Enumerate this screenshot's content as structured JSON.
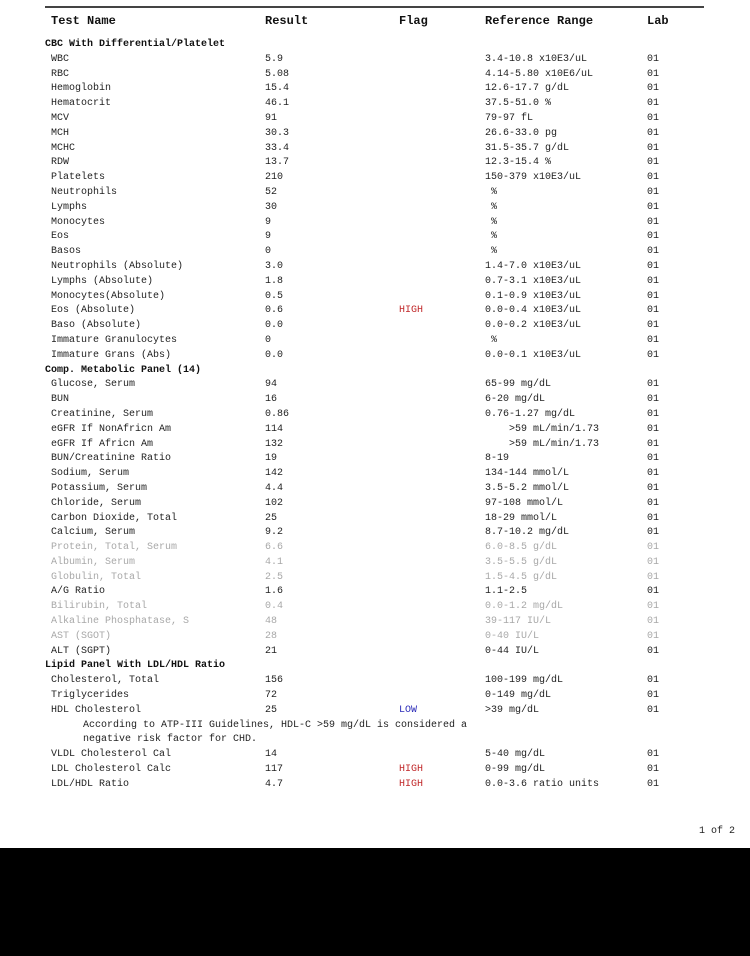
{
  "headers": {
    "test_name": "Test Name",
    "result": "Result",
    "flag": "Flag",
    "reference_range": "Reference Range",
    "lab": "Lab"
  },
  "colors": {
    "high": "#c0282a",
    "low": "#2a2ab8"
  },
  "rows": [
    {
      "type": "section",
      "name": "CBC With Differential/Platelet"
    },
    {
      "name": "WBC",
      "result": "5.9",
      "flag": "",
      "ref": "3.4-10.8 x10E3/uL",
      "lab": "01"
    },
    {
      "name": "RBC",
      "result": "5.08",
      "flag": "",
      "ref": "4.14-5.80 x10E6/uL",
      "lab": "01"
    },
    {
      "name": "Hemoglobin",
      "result": "15.4",
      "flag": "",
      "ref": "12.6-17.7 g/dL",
      "lab": "01"
    },
    {
      "name": "Hematocrit",
      "result": "46.1",
      "flag": "",
      "ref": "37.5-51.0 %",
      "lab": "01"
    },
    {
      "name": "MCV",
      "result": "91",
      "flag": "",
      "ref": "79-97 fL",
      "lab": "01"
    },
    {
      "name": "MCH",
      "result": "30.3",
      "flag": "",
      "ref": "26.6-33.0 pg",
      "lab": "01"
    },
    {
      "name": "MCHC",
      "result": "33.4",
      "flag": "",
      "ref": "31.5-35.7 g/dL",
      "lab": "01"
    },
    {
      "name": "RDW",
      "result": "13.7",
      "flag": "",
      "ref": "12.3-15.4 %",
      "lab": "01"
    },
    {
      "name": "Platelets",
      "result": "210",
      "flag": "",
      "ref": "150-379 x10E3/uL",
      "lab": "01"
    },
    {
      "name": "Neutrophils",
      "result": "52",
      "flag": "",
      "ref": " %",
      "lab": "01"
    },
    {
      "name": "Lymphs",
      "result": "30",
      "flag": "",
      "ref": " %",
      "lab": "01"
    },
    {
      "name": "Monocytes",
      "result": "9",
      "flag": "",
      "ref": " %",
      "lab": "01"
    },
    {
      "name": "Eos",
      "result": "9",
      "flag": "",
      "ref": " %",
      "lab": "01"
    },
    {
      "name": "Basos",
      "result": "0",
      "flag": "",
      "ref": " %",
      "lab": "01"
    },
    {
      "name": "Neutrophils (Absolute)",
      "result": "3.0",
      "flag": "",
      "ref": "1.4-7.0 x10E3/uL",
      "lab": "01"
    },
    {
      "name": "Lymphs (Absolute)",
      "result": "1.8",
      "flag": "",
      "ref": "0.7-3.1 x10E3/uL",
      "lab": "01"
    },
    {
      "name": "Monocytes(Absolute)",
      "result": "0.5",
      "flag": "",
      "ref": "0.1-0.9 x10E3/uL",
      "lab": "01"
    },
    {
      "name": "Eos (Absolute)",
      "result": "0.6",
      "flag": "HIGH",
      "ref": "0.0-0.4 x10E3/uL",
      "lab": "01"
    },
    {
      "name": "Baso (Absolute)",
      "result": "0.0",
      "flag": "",
      "ref": "0.0-0.2 x10E3/uL",
      "lab": "01"
    },
    {
      "name": "Immature Granulocytes",
      "result": "0",
      "flag": "",
      "ref": " %",
      "lab": "01"
    },
    {
      "name": "Immature Grans (Abs)",
      "result": "0.0",
      "flag": "",
      "ref": "0.0-0.1 x10E3/uL",
      "lab": "01"
    },
    {
      "type": "section",
      "name": "Comp. Metabolic Panel (14)"
    },
    {
      "name": "Glucose, Serum",
      "result": "94",
      "flag": "",
      "ref": "65-99 mg/dL",
      "lab": "01"
    },
    {
      "name": "BUN",
      "result": "16",
      "flag": "",
      "ref": "6-20 mg/dL",
      "lab": "01"
    },
    {
      "name": "Creatinine, Serum",
      "result": "0.86",
      "flag": "",
      "ref": "0.76-1.27 mg/dL",
      "lab": "01"
    },
    {
      "name": "eGFR If NonAfricn Am",
      "result": "114",
      "flag": "",
      "ref": "    >59 mL/min/1.73",
      "lab": "01"
    },
    {
      "name": "eGFR If Africn Am",
      "result": "132",
      "flag": "",
      "ref": "    >59 mL/min/1.73",
      "lab": "01"
    },
    {
      "name": "BUN/Creatinine Ratio",
      "result": "19",
      "flag": "",
      "ref": "8-19",
      "lab": "01"
    },
    {
      "name": "Sodium, Serum",
      "result": "142",
      "flag": "",
      "ref": "134-144 mmol/L",
      "lab": "01"
    },
    {
      "name": "Potassium, Serum",
      "result": "4.4",
      "flag": "",
      "ref": "3.5-5.2 mmol/L",
      "lab": "01"
    },
    {
      "name": "Chloride, Serum",
      "result": "102",
      "flag": "",
      "ref": "97-108 mmol/L",
      "lab": "01"
    },
    {
      "name": "Carbon Dioxide, Total",
      "result": "25",
      "flag": "",
      "ref": "18-29 mmol/L",
      "lab": "01"
    },
    {
      "name": "Calcium, Serum",
      "result": "9.2",
      "flag": "",
      "ref": "8.7-10.2 mg/dL",
      "lab": "01"
    },
    {
      "name": "Protein, Total, Serum",
      "result": "6.6",
      "flag": "",
      "ref": "6.0-8.5 g/dL",
      "lab": "01",
      "faded": true
    },
    {
      "name": "Albumin, Serum",
      "result": "4.1",
      "flag": "",
      "ref": "3.5-5.5 g/dL",
      "lab": "01",
      "faded": true
    },
    {
      "name": "Globulin, Total",
      "result": "2.5",
      "flag": "",
      "ref": "1.5-4.5 g/dL",
      "lab": "01",
      "faded": true
    },
    {
      "name": "A/G Ratio",
      "result": "1.6",
      "flag": "",
      "ref": "1.1-2.5",
      "lab": "01"
    },
    {
      "name": "Bilirubin, Total",
      "result": "0.4",
      "flag": "",
      "ref": "0.0-1.2 mg/dL",
      "lab": "01",
      "faded": true
    },
    {
      "name": "Alkaline Phosphatase, S",
      "result": "48",
      "flag": "",
      "ref": "39-117 IU/L",
      "lab": "01",
      "faded": true
    },
    {
      "name": "AST (SGOT)",
      "result": "28",
      "flag": "",
      "ref": "0-40 IU/L",
      "lab": "01",
      "faded": true
    },
    {
      "name": "ALT (SGPT)",
      "result": "21",
      "flag": "",
      "ref": "0-44 IU/L",
      "lab": "01"
    },
    {
      "type": "section",
      "name": "Lipid Panel With LDL/HDL Ratio"
    },
    {
      "name": "Cholesterol, Total",
      "result": "156",
      "flag": "",
      "ref": "100-199 mg/dL",
      "lab": "01"
    },
    {
      "name": "Triglycerides",
      "result": "72",
      "flag": "",
      "ref": "0-149 mg/dL",
      "lab": "01"
    },
    {
      "name": "HDL Cholesterol",
      "result": "25",
      "flag": "LOW",
      "ref": ">39 mg/dL",
      "lab": "01"
    },
    {
      "type": "note",
      "name": "According to ATP-III Guidelines, HDL-C >59 mg/dL is considered a"
    },
    {
      "type": "note",
      "name": "negative risk factor for CHD."
    },
    {
      "name": "VLDL Cholesterol Cal",
      "result": "14",
      "flag": "",
      "ref": "5-40 mg/dL",
      "lab": "01"
    },
    {
      "name": "LDL Cholesterol Calc",
      "result": "117",
      "flag": "HIGH",
      "ref": "0-99 mg/dL",
      "lab": "01"
    },
    {
      "name": "LDL/HDL Ratio",
      "result": "4.7",
      "flag": "HIGH",
      "ref": "0.0-3.6 ratio units",
      "lab": "01"
    }
  ],
  "page_indicator": "1 of 2"
}
